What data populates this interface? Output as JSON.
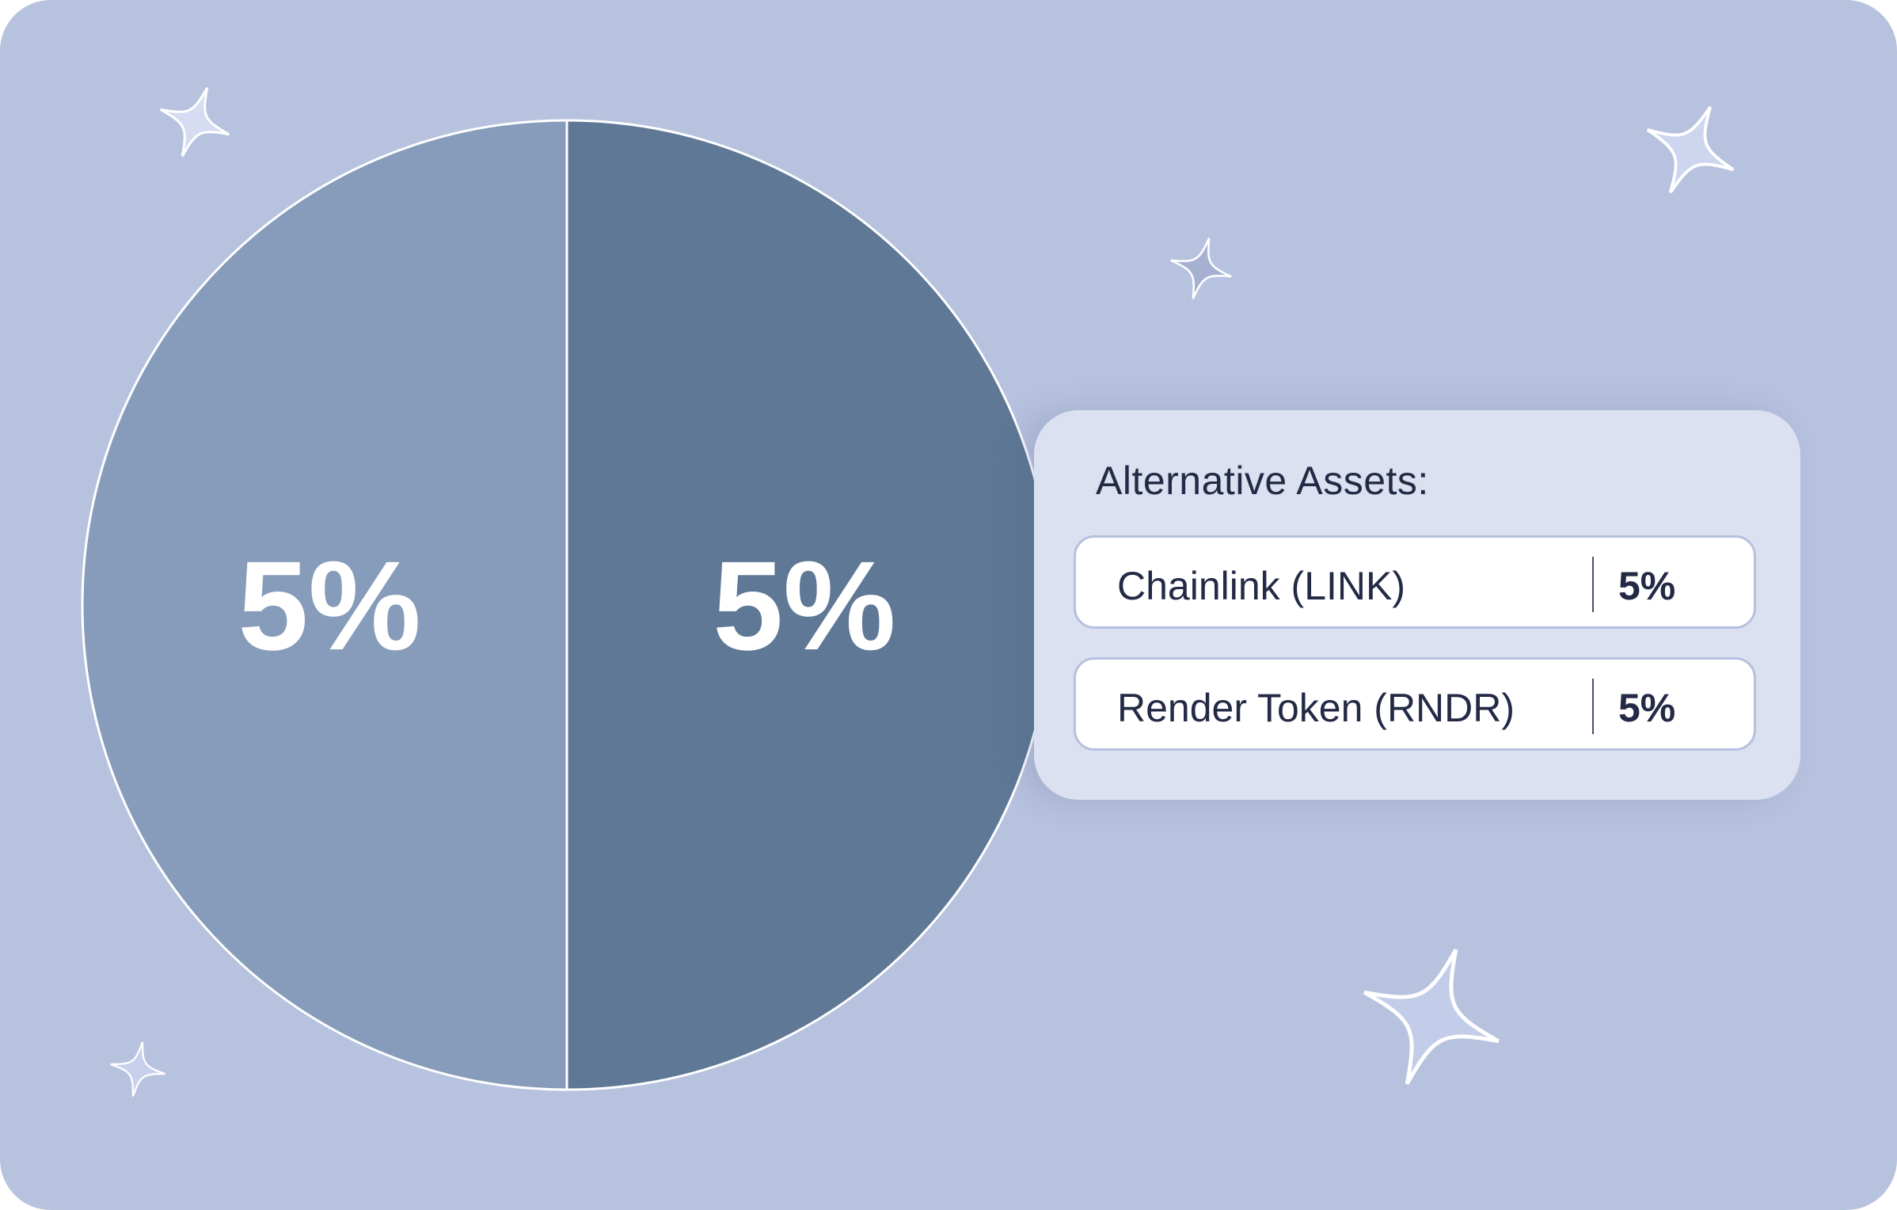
{
  "chart_data": {
    "type": "pie",
    "title": "",
    "slices": [
      {
        "label": "Chainlink (LINK)",
        "value": 5,
        "display": "5%",
        "color": "#869cba"
      },
      {
        "label": "Render Token (RNDR)",
        "value": 5,
        "display": "5%",
        "color": "#5e7896"
      }
    ],
    "legend_position": "right"
  },
  "legend": {
    "title": "Alternative Assets:",
    "items": [
      {
        "name": "Chainlink (LINK)",
        "value": "5%"
      },
      {
        "name": "Render Token (RNDR)",
        "value": "5%"
      }
    ]
  },
  "colors": {
    "background": "#b7c2df",
    "panel": "#dbe1f0",
    "text": "#232a45"
  },
  "decorations": [
    "sparkle-icon",
    "sparkle-icon",
    "sparkle-icon",
    "sparkle-icon",
    "sparkle-icon"
  ]
}
